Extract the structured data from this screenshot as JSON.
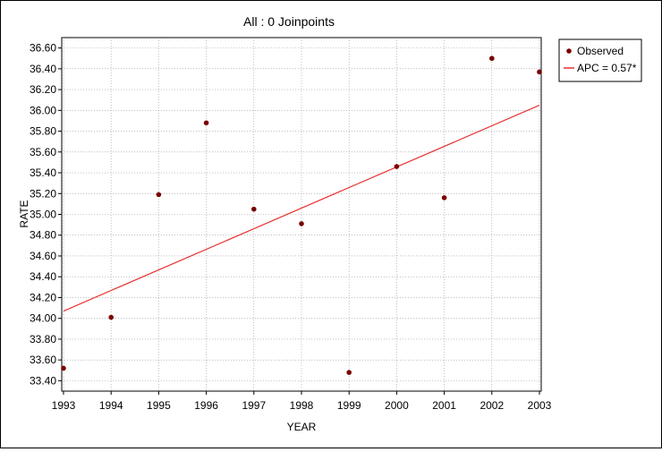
{
  "chart_data": {
    "type": "scatter",
    "title": "All : 0 Joinpoints",
    "xlabel": "YEAR",
    "ylabel": "RATE",
    "xlim": [
      1993,
      2003
    ],
    "ylim": [
      33.3,
      36.7
    ],
    "x_ticks": [
      1993,
      1994,
      1995,
      1996,
      1997,
      1998,
      1999,
      2000,
      2001,
      2002,
      2003
    ],
    "y_ticks": [
      "33.40",
      "33.60",
      "33.80",
      "34.00",
      "34.20",
      "34.40",
      "34.60",
      "34.80",
      "35.00",
      "35.20",
      "35.40",
      "35.60",
      "35.80",
      "36.00",
      "36.20",
      "36.40",
      "36.60"
    ],
    "grid": true,
    "legend_position": "top-right",
    "series": [
      {
        "name": "Observed",
        "kind": "points",
        "color": "#7a0000",
        "x": [
          1993,
          1994,
          1995,
          1996,
          1997,
          1998,
          1999,
          2000,
          2001,
          2002,
          2003
        ],
        "y": [
          33.52,
          34.01,
          35.19,
          35.88,
          35.05,
          34.91,
          33.48,
          35.46,
          35.16,
          36.5,
          36.37
        ]
      },
      {
        "name": "APC = 0.57*",
        "kind": "line",
        "color": "#e83030",
        "x": [
          1993,
          2003
        ],
        "y": [
          34.07,
          36.05
        ]
      }
    ]
  }
}
